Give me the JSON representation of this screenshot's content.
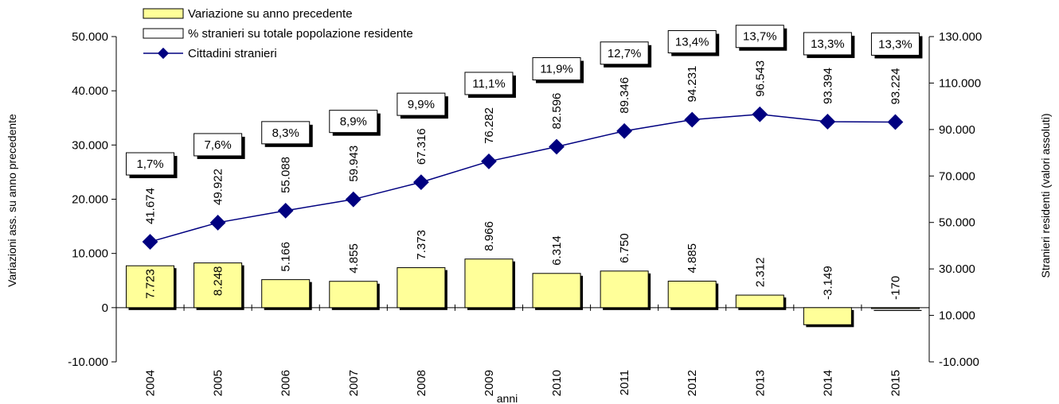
{
  "chart_data": {
    "type": "bar",
    "categories": [
      "2004",
      "2005",
      "2006",
      "2007",
      "2008",
      "2009",
      "2010",
      "2011",
      "2012",
      "2013",
      "2014",
      "2015"
    ],
    "xlabel": "anni",
    "ylabel_left": "Variazioni ass. su anno precedente",
    "ylabel_right": "Stranieri residenti (valori assoluti)",
    "ylim_left": [
      -10000,
      50000
    ],
    "ylim_right": [
      -10000,
      130000
    ],
    "yticks_left": [
      "-10.000",
      "0",
      "10.000",
      "20.000",
      "30.000",
      "40.000",
      "50.000"
    ],
    "yticks_right": [
      "-10.000",
      "10.000",
      "30.000",
      "50.000",
      "70.000",
      "90.000",
      "110.000",
      "130.000"
    ],
    "legend": [
      "Variazione su anno precedente",
      "% stranieri su totale popolazione residente",
      "Cittadini stranieri"
    ],
    "series": [
      {
        "name": "Variazione su anno precedente",
        "type": "bar",
        "axis": "left",
        "color": "#FFFF99",
        "values": [
          7723,
          8248,
          5166,
          4855,
          7373,
          8966,
          6314,
          6750,
          4885,
          2312,
          -3149,
          -170
        ],
        "labels": [
          "7.723",
          "8.248",
          "5.166",
          "4.855",
          "7.373",
          "8.966",
          "6.314",
          "6.750",
          "4.885",
          "2.312",
          "-3.149",
          "-170"
        ]
      },
      {
        "name": "Cittadini stranieri",
        "type": "line",
        "axis": "right",
        "color": "#000080",
        "values": [
          41674,
          49922,
          55088,
          59943,
          67316,
          76282,
          82596,
          89346,
          94231,
          96543,
          93394,
          93224
        ],
        "labels": [
          "41.674",
          "49.922",
          "55.088",
          "59.943",
          "67.316",
          "76.282",
          "82.596",
          "89.346",
          "94.231",
          "96.543",
          "93.394",
          "93.224"
        ]
      },
      {
        "name": "% stranieri su totale popolazione residente",
        "type": "label",
        "values": [
          1.7,
          7.6,
          8.3,
          8.9,
          9.9,
          11.1,
          11.9,
          12.7,
          13.4,
          13.7,
          13.3,
          13.3
        ],
        "labels": [
          "1,7%",
          "7,6%",
          "8,3%",
          "8,9%",
          "9,9%",
          "11,1%",
          "11,9%",
          "12,7%",
          "13,4%",
          "13,7%",
          "13,3%",
          "13,3%"
        ]
      }
    ]
  }
}
